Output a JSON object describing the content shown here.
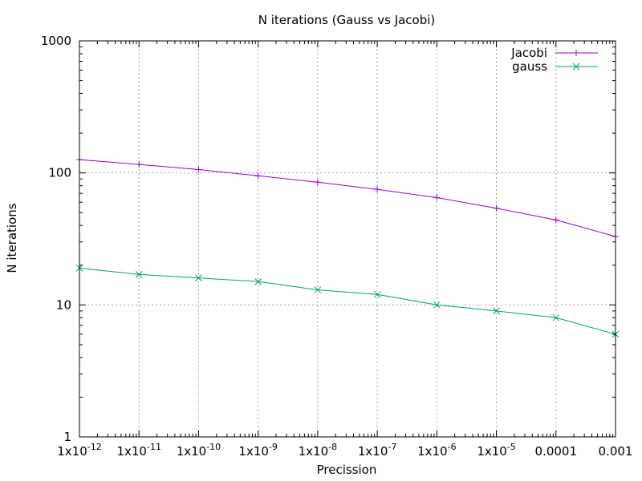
{
  "chart_data": {
    "type": "line",
    "title": "N iterations (Gauss vs Jacobi)",
    "xlabel": "Precission",
    "ylabel": "N iterations",
    "x_scale": "log",
    "y_scale": "log",
    "xlim": [
      1e-12,
      0.001
    ],
    "ylim": [
      1,
      1000
    ],
    "grid": true,
    "legend_position": "top-right",
    "x_ticks": [
      {
        "value": 1e-12,
        "base": "1x10",
        "exp": "-12"
      },
      {
        "value": 1e-11,
        "base": "1x10",
        "exp": "-11"
      },
      {
        "value": 1e-10,
        "base": "1x10",
        "exp": "-10"
      },
      {
        "value": 1e-09,
        "base": "1x10",
        "exp": "-9"
      },
      {
        "value": 1e-08,
        "base": "1x10",
        "exp": "-8"
      },
      {
        "value": 1e-07,
        "base": "1x10",
        "exp": "-7"
      },
      {
        "value": 1e-06,
        "base": "1x10",
        "exp": "-6"
      },
      {
        "value": 1e-05,
        "base": "1x10",
        "exp": "-5"
      },
      {
        "value": 0.0001,
        "base": "0.0001",
        "exp": ""
      },
      {
        "value": 0.001,
        "base": "0.001",
        "exp": ""
      }
    ],
    "y_ticks": [
      {
        "value": 1,
        "label": "1"
      },
      {
        "value": 10,
        "label": "10"
      },
      {
        "value": 100,
        "label": "100"
      },
      {
        "value": 1000,
        "label": "1000"
      }
    ],
    "series": [
      {
        "name": "Jacobi",
        "color": "#9400d3",
        "marker": "plus",
        "points": [
          [
            1e-12,
            126
          ],
          [
            1e-11,
            116
          ],
          [
            1e-10,
            106
          ],
          [
            1e-09,
            95
          ],
          [
            1e-08,
            85
          ],
          [
            1e-07,
            75
          ],
          [
            1e-06,
            65
          ],
          [
            1e-05,
            54
          ],
          [
            0.0001,
            44
          ],
          [
            0.001,
            33
          ]
        ]
      },
      {
        "name": "gauss",
        "color": "#009e73",
        "marker": "cross",
        "points": [
          [
            1e-12,
            19
          ],
          [
            1e-11,
            17
          ],
          [
            1e-10,
            16
          ],
          [
            1e-09,
            15
          ],
          [
            1e-08,
            13
          ],
          [
            1e-07,
            12
          ],
          [
            1e-06,
            10
          ],
          [
            1e-05,
            9
          ],
          [
            0.0001,
            8
          ],
          [
            0.001,
            6
          ]
        ]
      }
    ]
  }
}
